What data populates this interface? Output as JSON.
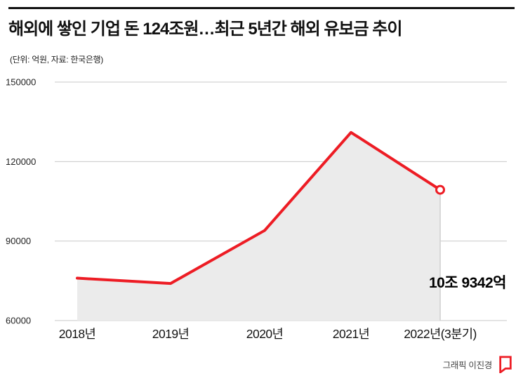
{
  "header": {
    "title": "해외에 쌓인 기업 돈 124조원…최근 5년간 해외 유보금 추이",
    "subtitle": "(단위: 억원, 자료: 한국은행)"
  },
  "chart_data": {
    "type": "line",
    "title": "최근 5년간 해외 유보금 추이",
    "categories": [
      "2018년",
      "2019년",
      "2020년",
      "2021년",
      "2022년(3분기)"
    ],
    "values": [
      76000,
      74000,
      94000,
      131000,
      109342
    ],
    "yticks": [
      150000,
      120000,
      90000,
      60000
    ],
    "ylim": [
      60000,
      150000
    ],
    "grid": true,
    "legend": "none",
    "last_point_label": "10조 9342억",
    "last_point_marker": "open-circle",
    "line_color": "#ed1c24",
    "area_color": "#ebebeb",
    "grid_color": "#c9c9c9",
    "tick_color": "#222222"
  },
  "footer": {
    "credit": "그래픽 이진경",
    "logo": "publisher-logo"
  }
}
